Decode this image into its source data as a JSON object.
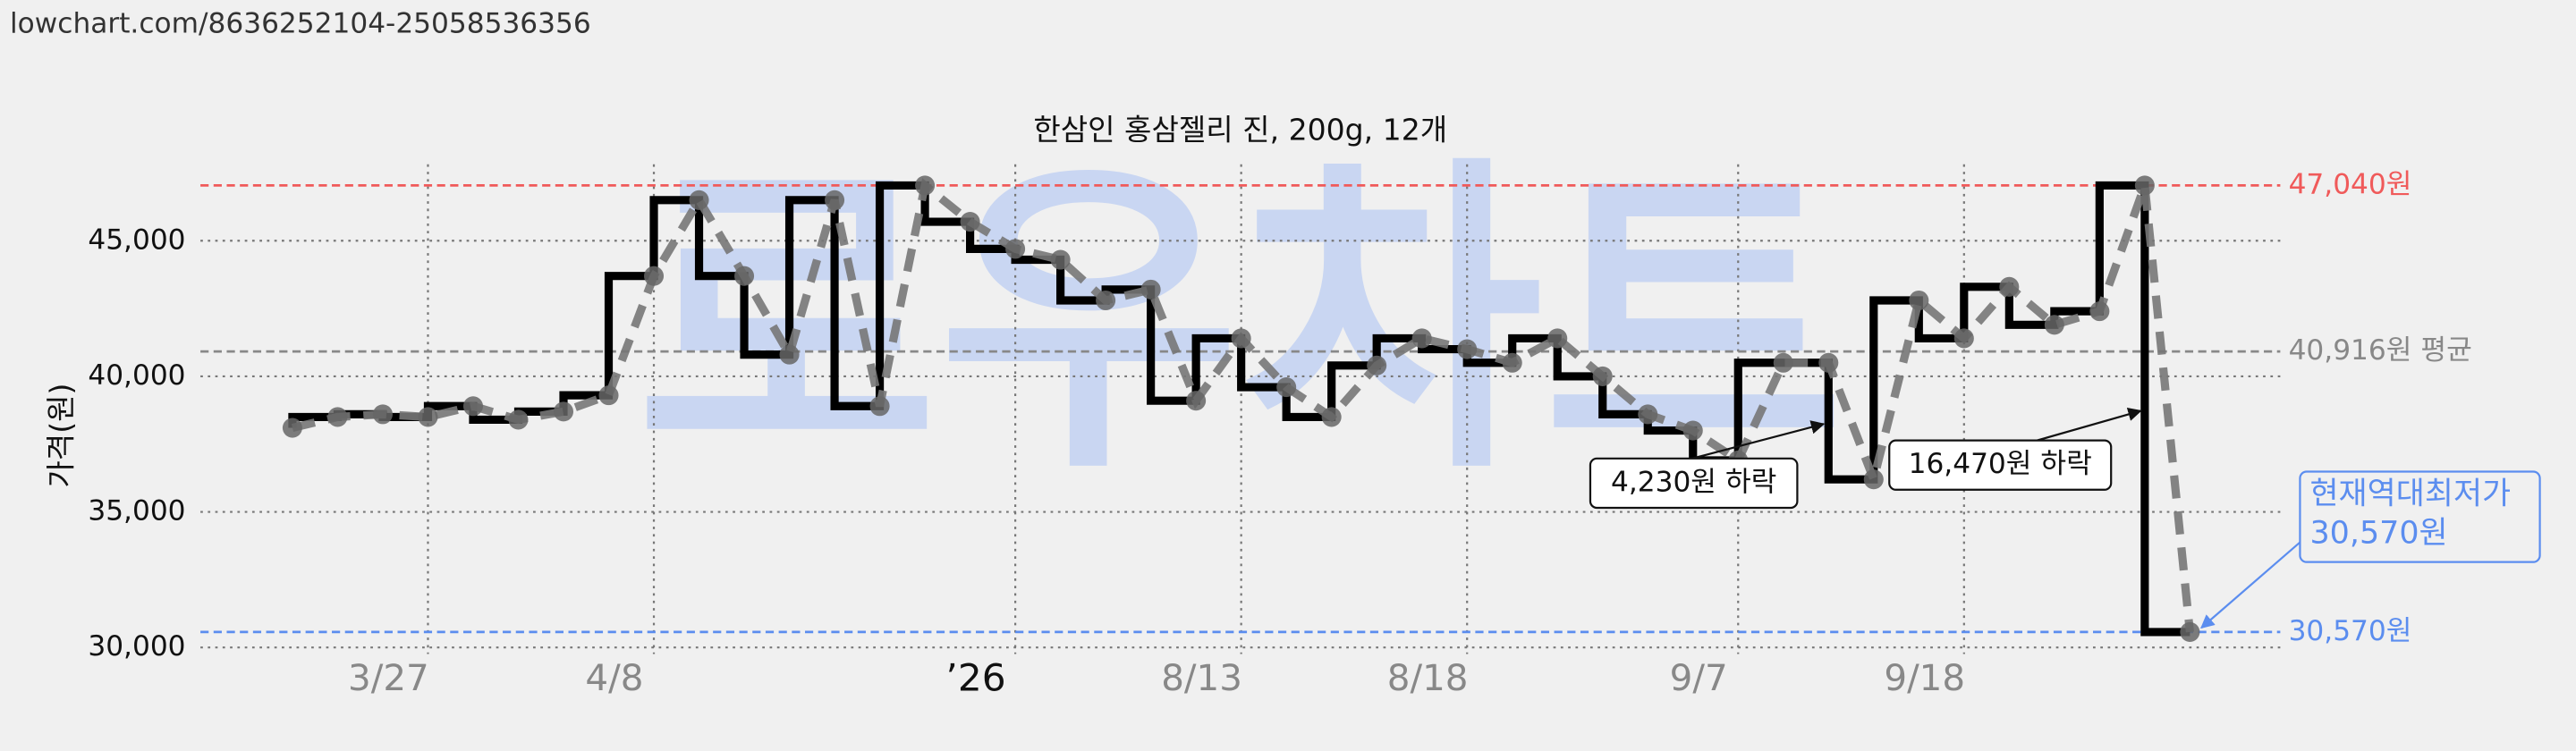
{
  "url": "lowchart.com/8636252104-25058536356",
  "chart_data": {
    "type": "step-line",
    "title": "한삼인 홍삼젤리 진, 200g, 12개",
    "y_label": "가격(원)",
    "watermark": "로우차트",
    "categories": [
      null,
      null,
      null,
      "3/27",
      null,
      null,
      null,
      null,
      "4/8",
      null,
      null,
      null,
      null,
      null,
      null,
      null,
      "’26",
      null,
      null,
      null,
      null,
      "8/13",
      null,
      null,
      null,
      null,
      "8/18",
      null,
      null,
      null,
      null,
      null,
      "9/7",
      null,
      null,
      null,
      null,
      "9/18",
      null,
      null,
      null,
      null,
      null
    ],
    "values": [
      38100,
      38500,
      38600,
      38500,
      38900,
      38400,
      38700,
      39300,
      43700,
      46500,
      43700,
      40800,
      46500,
      38900,
      47040,
      45700,
      44700,
      44300,
      42800,
      43200,
      39100,
      41400,
      39600,
      38500,
      40400,
      41400,
      41000,
      40500,
      41400,
      40000,
      38600,
      38000,
      36900,
      40500,
      40500,
      36200,
      42800,
      41400,
      43300,
      41900,
      42400,
      47040,
      30570
    ],
    "color": "#000000",
    "dash_color": "#777777",
    "ylim": [
      29500,
      48500
    ],
    "yticks": [
      {
        "value": 30000,
        "label": "30,000"
      },
      {
        "value": 35000,
        "label": "35,000"
      },
      {
        "value": 40000,
        "label": "40,000"
      },
      {
        "value": 45000,
        "label": "45,000"
      }
    ],
    "grid": true,
    "reference_lines": [
      {
        "value": 47040,
        "label": "47,040원",
        "color": "#f05a5a"
      },
      {
        "value": 40916,
        "label": "40,916원 평균",
        "color": "#888888"
      },
      {
        "value": 30570,
        "label": "30,570원",
        "color": "#5b8def"
      }
    ],
    "annotations": [
      {
        "text": [
          "4,230원 하락"
        ]
      },
      {
        "text": [
          "16,470원 하락"
        ]
      },
      {
        "text": [
          "현재역대최저가",
          "30,570원"
        ]
      }
    ]
  }
}
